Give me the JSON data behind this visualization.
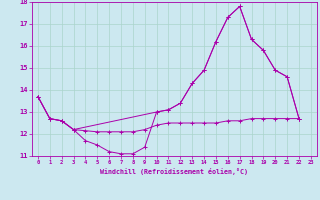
{
  "xlabel": "Windchill (Refroidissement éolien,°C)",
  "background_color": "#cce8f0",
  "line_color": "#aa00aa",
  "xlim": [
    -0.5,
    23.5
  ],
  "ylim": [
    11,
    18
  ],
  "yticks": [
    11,
    12,
    13,
    14,
    15,
    16,
    17,
    18
  ],
  "xticks": [
    0,
    1,
    2,
    3,
    4,
    5,
    6,
    7,
    8,
    9,
    10,
    11,
    12,
    13,
    14,
    15,
    16,
    17,
    18,
    19,
    20,
    21,
    22,
    23
  ],
  "grid_color": "#aad4cc",
  "line1_x": [
    0,
    1,
    2,
    3,
    4,
    5,
    6,
    7,
    8,
    9,
    10,
    11,
    12,
    13,
    14,
    15,
    16,
    17,
    18,
    19,
    20,
    21,
    22
  ],
  "line1_y": [
    13.7,
    12.7,
    12.6,
    12.2,
    11.7,
    11.5,
    11.2,
    11.1,
    11.1,
    11.4,
    13.0,
    13.1,
    13.4,
    14.3,
    14.9,
    16.2,
    17.3,
    17.8,
    16.3,
    15.8,
    14.9,
    14.6,
    12.7
  ],
  "line2_x": [
    0,
    1,
    2,
    3,
    4,
    5,
    6,
    7,
    8,
    9,
    10,
    11,
    12,
    13,
    14,
    15,
    16,
    17,
    18,
    19,
    20,
    21,
    22
  ],
  "line2_y": [
    13.7,
    12.7,
    12.6,
    12.2,
    12.15,
    12.1,
    12.1,
    12.1,
    12.1,
    12.2,
    12.4,
    12.5,
    12.5,
    12.5,
    12.5,
    12.5,
    12.6,
    12.6,
    12.7,
    12.7,
    12.7,
    12.7,
    12.7
  ],
  "line3_x": [
    0,
    1,
    2,
    3,
    10,
    11,
    12,
    13,
    14,
    15,
    16,
    17,
    18,
    19,
    20,
    21,
    22
  ],
  "line3_y": [
    13.7,
    12.7,
    12.6,
    12.2,
    13.0,
    13.1,
    13.4,
    14.3,
    14.9,
    16.2,
    17.3,
    17.8,
    16.3,
    15.8,
    14.9,
    14.6,
    12.7
  ]
}
